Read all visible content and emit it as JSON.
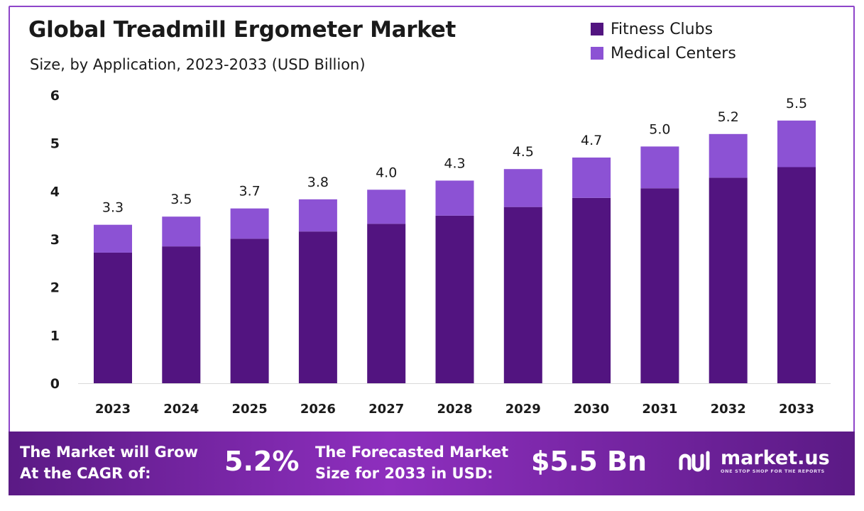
{
  "header": {
    "title": "Global Treadmill Ergometer Market",
    "subtitle": "Size, by Application, 2023-2033 (USD Billion)"
  },
  "colors": {
    "fitness_clubs": "#521480",
    "medical_centers": "#8c52d4",
    "frame": "#8e45c9",
    "footer_dark": "#5b1a85",
    "footer_light": "#8e2fbe"
  },
  "chart_data": {
    "type": "bar",
    "stacked": true,
    "categories": [
      "2023",
      "2024",
      "2025",
      "2026",
      "2027",
      "2028",
      "2029",
      "2030",
      "2031",
      "2032",
      "2033"
    ],
    "series": [
      {
        "name": "Fitness Clubs",
        "values": [
          2.72,
          2.85,
          3.01,
          3.16,
          3.32,
          3.49,
          3.67,
          3.86,
          4.06,
          4.28,
          4.5
        ]
      },
      {
        "name": "Medical Centers",
        "values": [
          0.58,
          0.62,
          0.63,
          0.67,
          0.71,
          0.73,
          0.79,
          0.84,
          0.87,
          0.91,
          0.97
        ]
      }
    ],
    "totals": [
      "3.3",
      "3.5",
      "3.7",
      "3.8",
      "4.0",
      "4.3",
      "4.5",
      "4.7",
      "5.0",
      "5.2",
      "5.5"
    ],
    "ylim": [
      0,
      6
    ],
    "yticks": [
      "0",
      "1",
      "2",
      "3",
      "4",
      "5",
      "6"
    ],
    "xlabel": "",
    "ylabel": "",
    "grid": false,
    "legend_position": "top-right"
  },
  "footer": {
    "cagr_label_line1": "The Market will Grow",
    "cagr_label_line2": "At the CAGR of:",
    "cagr_value": "5.2%",
    "forecast_label_line1": "The Forecasted Market",
    "forecast_label_line2": "Size for 2033 in USD:",
    "forecast_value": "$5.5 Bn",
    "logo_name": "market.us",
    "logo_tagline": "ONE STOP SHOP FOR THE REPORTS"
  }
}
